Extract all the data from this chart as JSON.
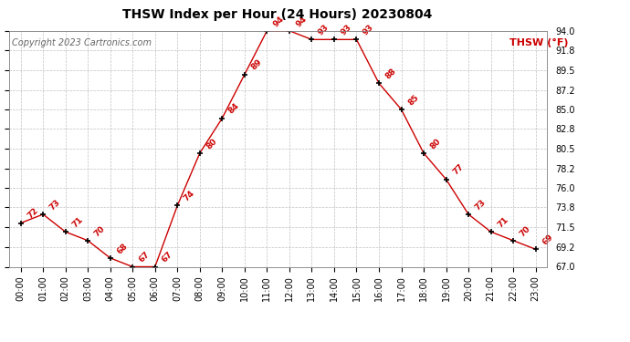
{
  "title": "THSW Index per Hour (24 Hours) 20230804",
  "copyright": "Copyright 2023 Cartronics.com",
  "legend_label": "THSW (°F)",
  "hours": [
    "00:00",
    "01:00",
    "02:00",
    "03:00",
    "04:00",
    "05:00",
    "06:00",
    "07:00",
    "08:00",
    "09:00",
    "10:00",
    "11:00",
    "12:00",
    "13:00",
    "14:00",
    "15:00",
    "16:00",
    "17:00",
    "18:00",
    "19:00",
    "20:00",
    "21:00",
    "22:00",
    "23:00"
  ],
  "values": [
    72,
    73,
    71,
    70,
    68,
    67,
    67,
    74,
    80,
    84,
    89,
    94,
    94,
    93,
    93,
    93,
    88,
    85,
    80,
    77,
    73,
    71,
    70,
    69
  ],
  "line_color": "#cc0000",
  "marker_color": "#000000",
  "label_color": "#cc0000",
  "bg_color": "#ffffff",
  "grid_color": "#c0c0c0",
  "ylim_min": 67.0,
  "ylim_max": 94.0,
  "yticks": [
    67.0,
    69.2,
    71.5,
    73.8,
    76.0,
    78.2,
    80.5,
    82.8,
    85.0,
    87.2,
    89.5,
    91.8,
    94.0
  ],
  "title_fontsize": 10,
  "copyright_fontsize": 7,
  "legend_fontsize": 8,
  "label_fontsize": 6.5,
  "tick_fontsize": 7
}
